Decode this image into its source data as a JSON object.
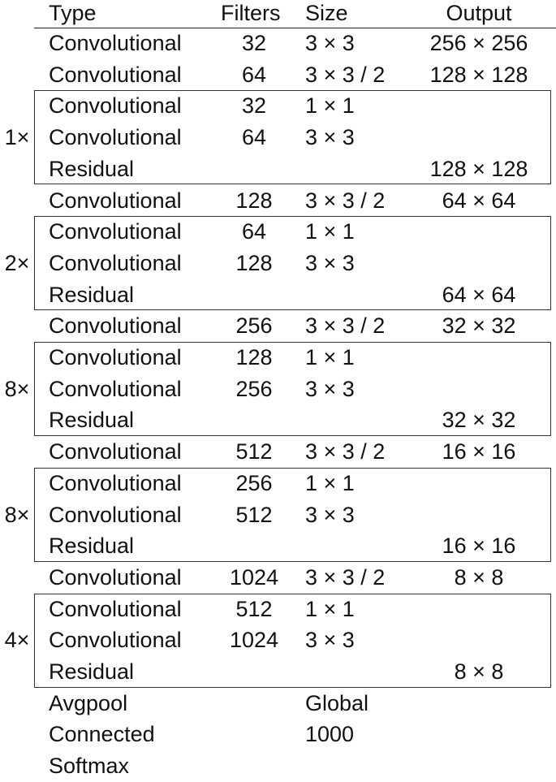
{
  "header": {
    "type": "Type",
    "filters": "Filters",
    "size": "Size",
    "output": "Output"
  },
  "rows": [
    {
      "type": "Convolutional",
      "filters": "32",
      "size": "3 × 3",
      "output": "256 × 256"
    },
    {
      "type": "Convolutional",
      "filters": "64",
      "size": "3 × 3 / 2",
      "output": "128 × 128"
    },
    {
      "type": "Convolutional",
      "filters": "32",
      "size": "1 × 1",
      "output": ""
    },
    {
      "type": "Convolutional",
      "filters": "64",
      "size": "3 × 3",
      "output": ""
    },
    {
      "type": "Residual",
      "filters": "",
      "size": "",
      "output": "128 × 128"
    },
    {
      "type": "Convolutional",
      "filters": "128",
      "size": "3 × 3 / 2",
      "output": "64 × 64"
    },
    {
      "type": "Convolutional",
      "filters": "64",
      "size": "1 × 1",
      "output": ""
    },
    {
      "type": "Convolutional",
      "filters": "128",
      "size": "3 × 3",
      "output": ""
    },
    {
      "type": "Residual",
      "filters": "",
      "size": "",
      "output": "64 × 64"
    },
    {
      "type": "Convolutional",
      "filters": "256",
      "size": "3 × 3 / 2",
      "output": "32 × 32"
    },
    {
      "type": "Convolutional",
      "filters": "128",
      "size": "1 × 1",
      "output": ""
    },
    {
      "type": "Convolutional",
      "filters": "256",
      "size": "3 × 3",
      "output": ""
    },
    {
      "type": "Residual",
      "filters": "",
      "size": "",
      "output": "32 × 32"
    },
    {
      "type": "Convolutional",
      "filters": "512",
      "size": "3 × 3 / 2",
      "output": "16 × 16"
    },
    {
      "type": "Convolutional",
      "filters": "256",
      "size": "1 × 1",
      "output": ""
    },
    {
      "type": "Convolutional",
      "filters": "512",
      "size": "3 × 3",
      "output": ""
    },
    {
      "type": "Residual",
      "filters": "",
      "size": "",
      "output": "16 × 16"
    },
    {
      "type": "Convolutional",
      "filters": "1024",
      "size": "3 × 3 / 2",
      "output": "8 × 8"
    },
    {
      "type": "Convolutional",
      "filters": "512",
      "size": "1 × 1",
      "output": ""
    },
    {
      "type": "Convolutional",
      "filters": "1024",
      "size": "3 × 3",
      "output": ""
    },
    {
      "type": "Residual",
      "filters": "",
      "size": "",
      "output": "8 × 8"
    },
    {
      "type": "Avgpool",
      "filters": "",
      "size": "Global",
      "output": ""
    },
    {
      "type": "Connected",
      "filters": "",
      "size": "1000",
      "output": ""
    },
    {
      "type": "Softmax",
      "filters": "",
      "size": "",
      "output": ""
    }
  ],
  "repeat_blocks": [
    {
      "multiplier": "1×"
    },
    {
      "multiplier": "2×"
    },
    {
      "multiplier": "8×"
    },
    {
      "multiplier": "8×"
    },
    {
      "multiplier": "4×"
    }
  ]
}
